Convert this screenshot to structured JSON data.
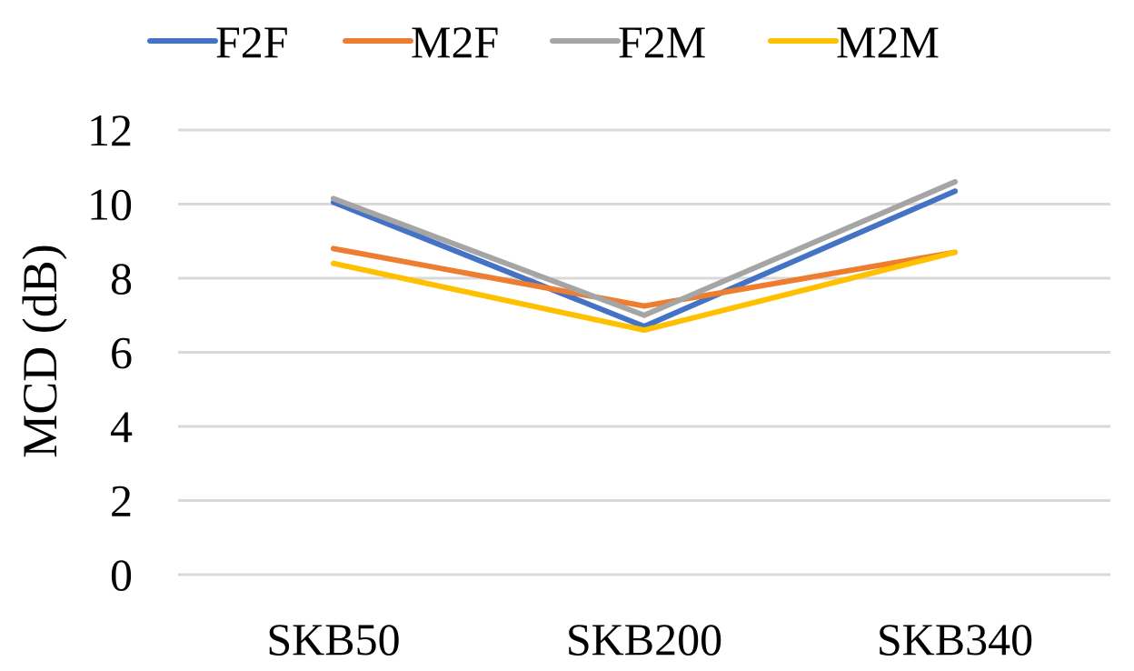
{
  "chart_data": {
    "type": "line",
    "categories": [
      "SKB50",
      "SKB200",
      "SKB340"
    ],
    "series": [
      {
        "name": "F2F",
        "color": "#4472c4",
        "values": [
          10.05,
          6.7,
          10.35
        ]
      },
      {
        "name": "M2F",
        "color": "#ed7d31",
        "values": [
          8.8,
          7.25,
          8.7
        ]
      },
      {
        "name": "F2M",
        "color": "#a5a5a5",
        "values": [
          10.15,
          7.0,
          10.6
        ]
      },
      {
        "name": "M2M",
        "color": "#ffc000",
        "values": [
          8.4,
          6.6,
          8.7
        ]
      }
    ],
    "xlabel": "",
    "ylabel": "MCD (dB)",
    "ylim": [
      0,
      12
    ],
    "yticks": [
      0,
      2,
      4,
      6,
      8,
      10,
      12
    ],
    "ytick_labels": [
      "0",
      "2",
      "4",
      "6",
      "8",
      "10",
      "12"
    ],
    "grid": true,
    "legend_position": "top"
  }
}
